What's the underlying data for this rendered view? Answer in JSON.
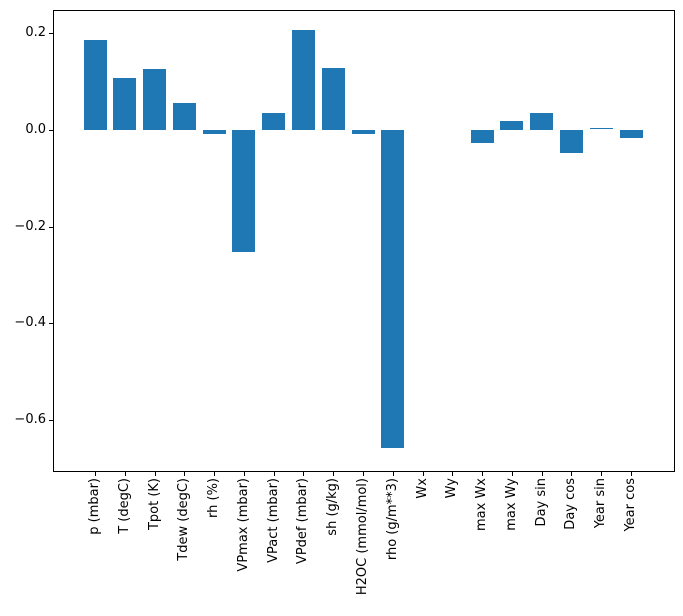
{
  "figure": {
    "background": "#ffffff",
    "frame_color": "#000000"
  },
  "chart_data": {
    "type": "bar",
    "title": "",
    "xlabel": "",
    "ylabel": "",
    "categories": [
      "p (mbar)",
      "T (degC)",
      "Tpot (K)",
      "Tdew (degC)",
      "rh (%)",
      "VPmax (mbar)",
      "VPact (mbar)",
      "VPdef (mbar)",
      "sh (g/kg)",
      "H2OC (mmol/mol)",
      "rho (g/m**3)",
      "Wx",
      "Wy",
      "max Wx",
      "max Wy",
      "Day sin",
      "Day cos",
      "Year sin",
      "Year cos"
    ],
    "values": [
      0.186,
      0.107,
      0.126,
      0.055,
      -0.009,
      -0.252,
      0.035,
      0.207,
      0.128,
      -0.008,
      -0.659,
      0.0,
      0.0,
      -0.026,
      0.019,
      0.035,
      -0.048,
      0.003,
      -0.016
    ],
    "ylim": [
      -0.706,
      0.246
    ],
    "yticks": [
      0.2,
      0.0,
      -0.2,
      -0.4,
      -0.6
    ],
    "ytick_labels": [
      "0.2",
      "0.0",
      "−0.2",
      "−0.4",
      "−0.6"
    ],
    "bar_color": "#1f77b4",
    "grid": false,
    "legend_position": "none",
    "x_tick_rotation_deg": 90
  }
}
